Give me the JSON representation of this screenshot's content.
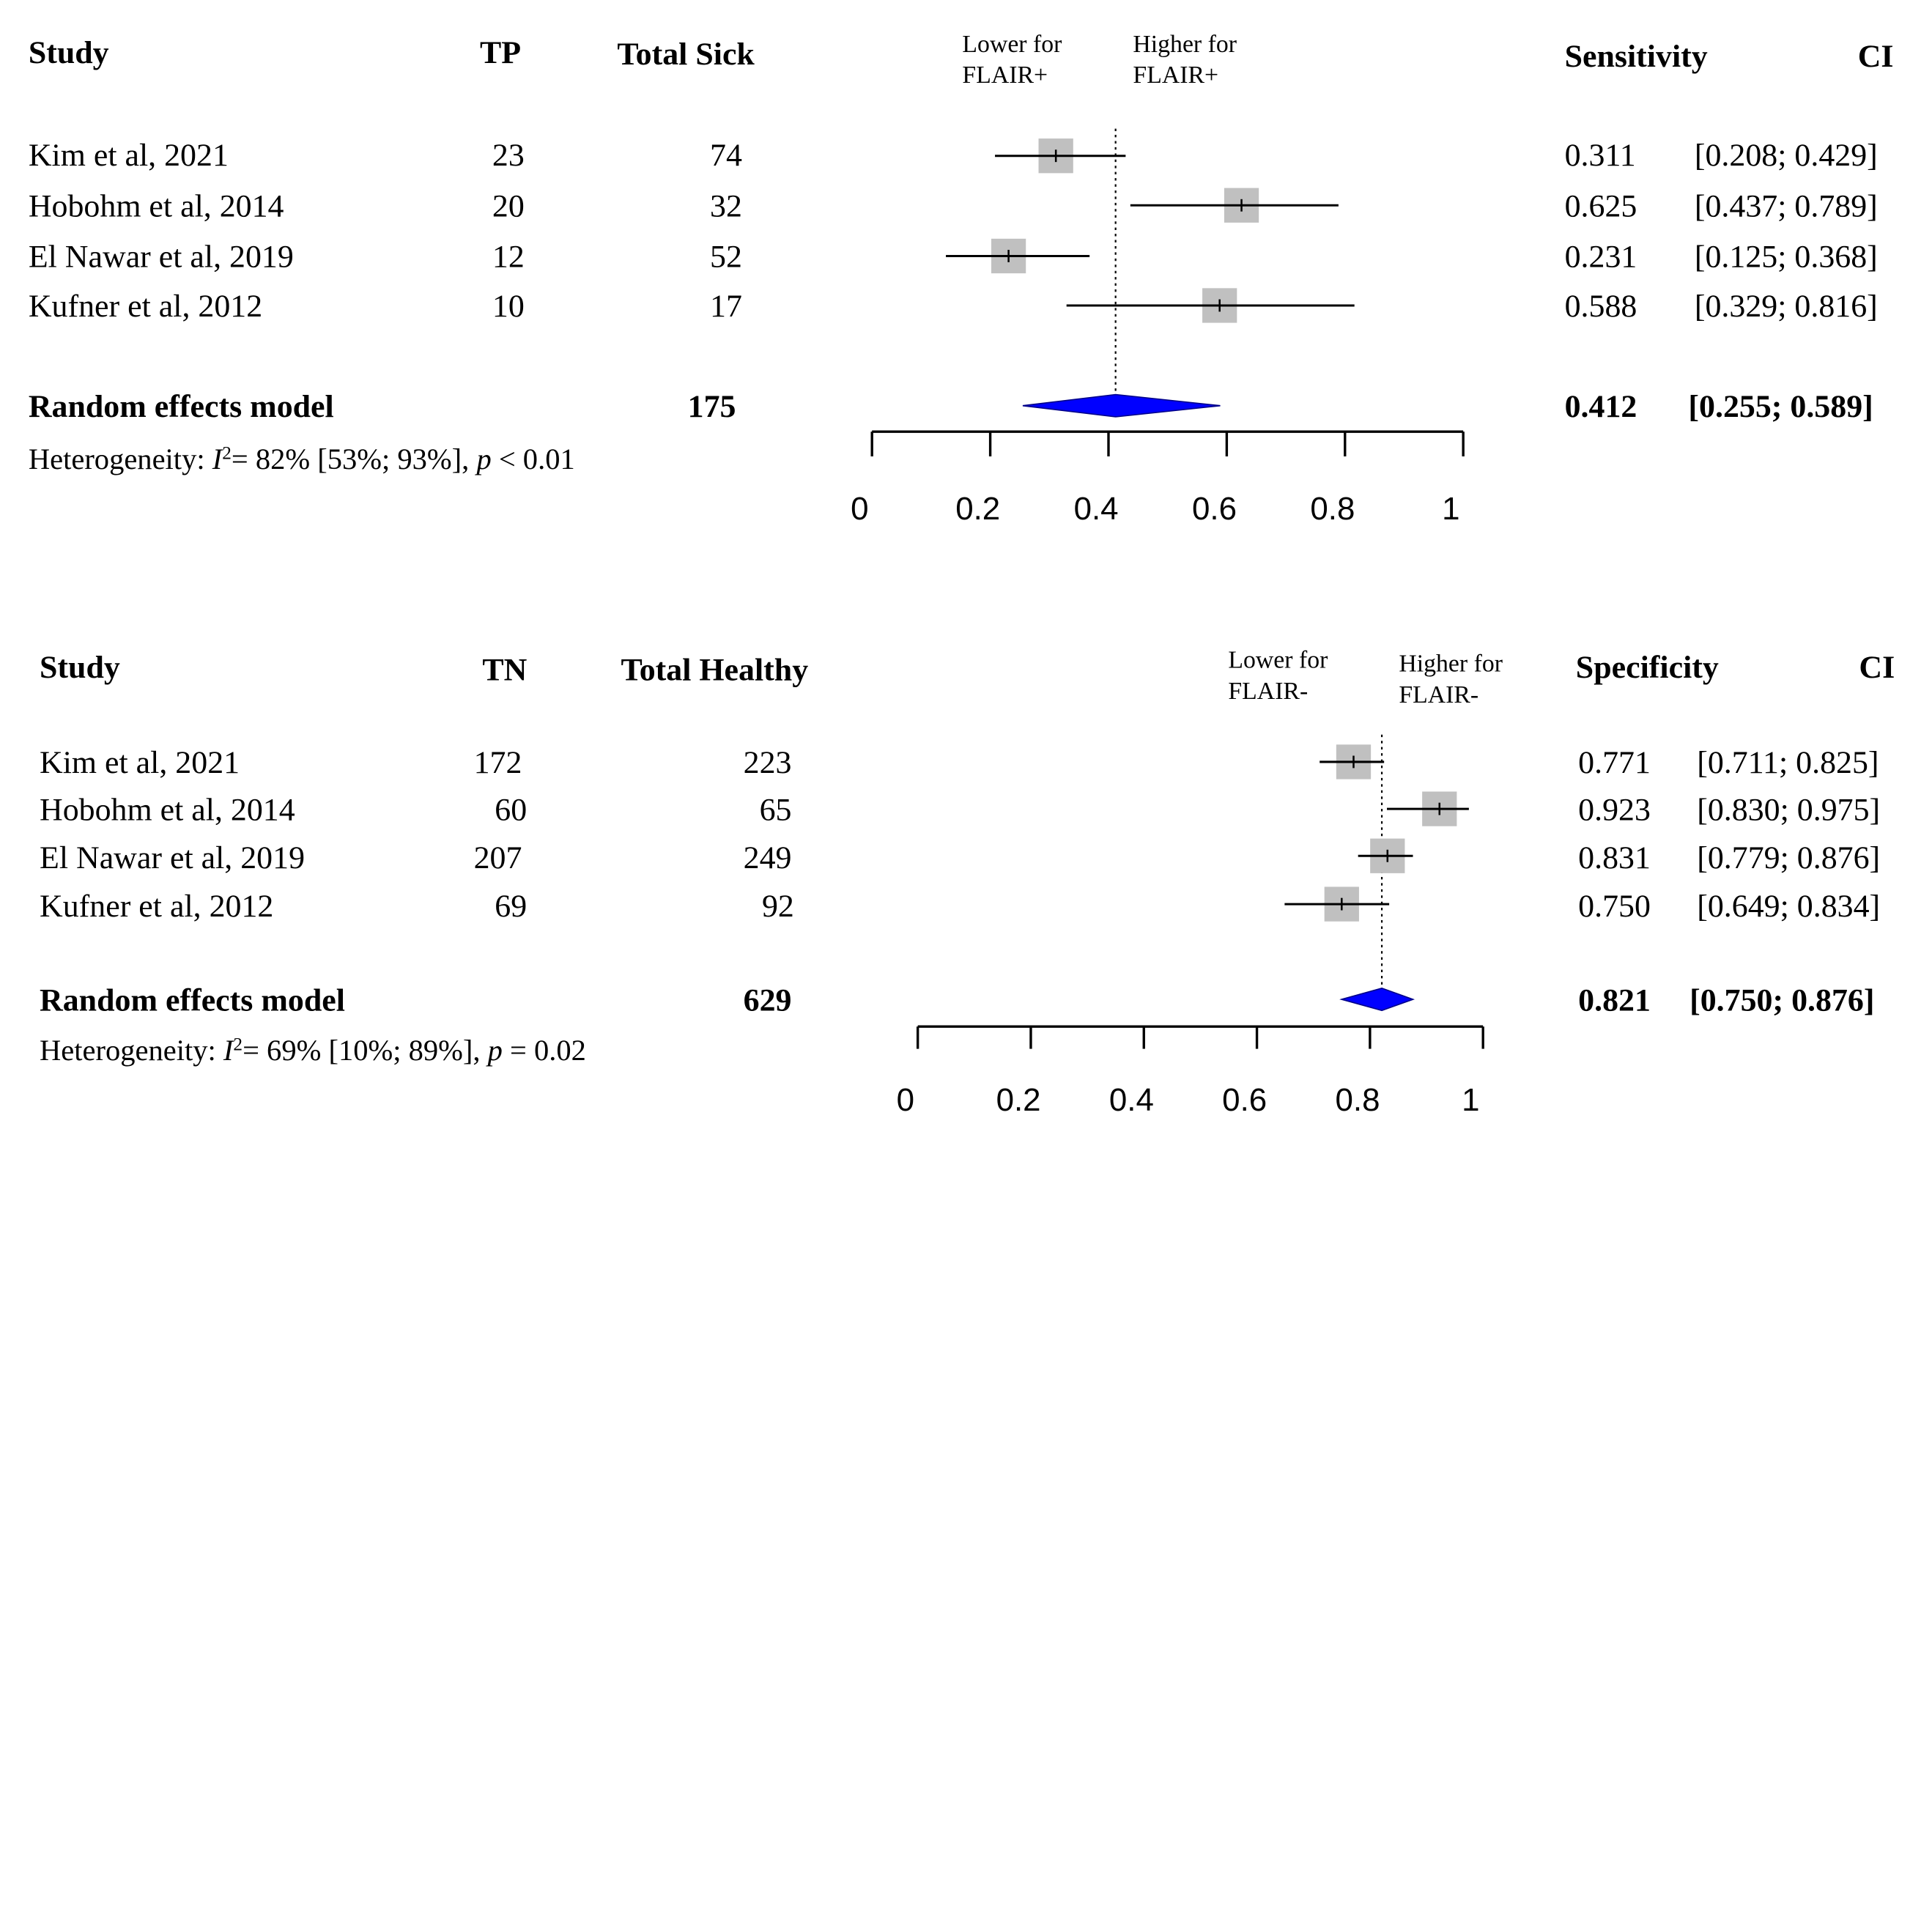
{
  "chart_data": [
    {
      "type": "forest",
      "headers": {
        "study": "Study",
        "count": "TP",
        "total": "Total Sick",
        "left_label": "Lower for\nFLAIR+",
        "right_label": "Higher for\nFLAIR+",
        "estimate": "Sensitivity",
        "ci": "CI"
      },
      "studies": [
        {
          "name": "Kim et al, 2021",
          "count": "23",
          "total": "74",
          "est": 0.311,
          "lo": 0.208,
          "hi": 0.429,
          "weight": 1.0,
          "est_text": "0.311",
          "ci_text": "[0.208; 0.429]"
        },
        {
          "name": "Hobohm et al, 2014",
          "count": "20",
          "total": "32",
          "est": 0.625,
          "lo": 0.437,
          "hi": 0.789,
          "weight": 1.0,
          "est_text": "0.625",
          "ci_text": "[0.437; 0.789]"
        },
        {
          "name": "El Nawar et al, 2019",
          "count": "12",
          "total": "52",
          "est": 0.231,
          "lo": 0.125,
          "hi": 0.368,
          "weight": 1.0,
          "est_text": "0.231",
          "ci_text": "[0.125; 0.368]"
        },
        {
          "name": "Kufner et al, 2012",
          "count": "10",
          "total": "17",
          "est": 0.588,
          "lo": 0.329,
          "hi": 0.816,
          "weight": 1.0,
          "est_text": "0.588",
          "ci_text": "[0.329; 0.816]"
        }
      ],
      "pooled": {
        "label": "Random effects model",
        "total": "175",
        "est": 0.412,
        "lo": 0.255,
        "hi": 0.589,
        "est_text": "0.412",
        "ci_text": "[0.255; 0.589]"
      },
      "heterogeneity": {
        "prefix": "Heterogeneity:",
        "i2_symbol": "I",
        "i2_sup": "2",
        "i2_value": "= 82% [53%; 93%],",
        "p_symbol": "p",
        "p_value": "< 0.01"
      },
      "xlim": [
        0,
        1
      ],
      "ticks": [
        0,
        0.2,
        0.4,
        0.6,
        0.8,
        1
      ],
      "tick_labels": [
        "0",
        "0.2",
        "0.4",
        "0.6",
        "0.8",
        "1"
      ],
      "colors": {
        "square": "#c0c0c0",
        "diamond": "#0000ff",
        "diamond_edge": "#00008b"
      }
    },
    {
      "type": "forest",
      "headers": {
        "study": "Study",
        "count": "TN",
        "total": "Total Healthy",
        "left_label": "Lower for\nFLAIR-",
        "right_label": "Higher for\nFLAIR-",
        "estimate": "Specificity",
        "ci": "CI"
      },
      "studies": [
        {
          "name": "Kim et al, 2021",
          "count": "172",
          "total": "223",
          "est": 0.771,
          "lo": 0.711,
          "hi": 0.825,
          "weight": 1.0,
          "est_text": "0.771",
          "ci_text": "[0.711; 0.825]"
        },
        {
          "name": "Hobohm et al, 2014",
          "count": "60",
          "total": "65",
          "est": 0.923,
          "lo": 0.83,
          "hi": 0.975,
          "weight": 1.0,
          "est_text": "0.923",
          "ci_text": "[0.830; 0.975]"
        },
        {
          "name": "El Nawar et al, 2019",
          "count": "207",
          "total": "249",
          "est": 0.831,
          "lo": 0.779,
          "hi": 0.876,
          "weight": 1.0,
          "est_text": "0.831",
          "ci_text": "[0.779; 0.876]"
        },
        {
          "name": "Kufner et al, 2012",
          "count": "69",
          "total": "92",
          "est": 0.75,
          "lo": 0.649,
          "hi": 0.834,
          "weight": 1.0,
          "est_text": "0.750",
          "ci_text": "[0.649; 0.834]"
        }
      ],
      "pooled": {
        "label": "Random effects model",
        "total": "629",
        "est": 0.821,
        "lo": 0.75,
        "hi": 0.876,
        "est_text": "0.821",
        "ci_text": "[0.750; 0.876]"
      },
      "heterogeneity": {
        "prefix": "Heterogeneity:",
        "i2_symbol": "I",
        "i2_sup": "2",
        "i2_value": "= 69% [10%; 89%],",
        "p_symbol": "p",
        "p_value": "= 0.02"
      },
      "xlim": [
        0,
        1
      ],
      "ticks": [
        0,
        0.2,
        0.4,
        0.6,
        0.8,
        1
      ],
      "tick_labels": [
        "0",
        "0.2",
        "0.4",
        "0.6",
        "0.8",
        "1"
      ],
      "colors": {
        "square": "#c0c0c0",
        "diamond": "#0000ff",
        "diamond_edge": "#00008b"
      }
    }
  ]
}
